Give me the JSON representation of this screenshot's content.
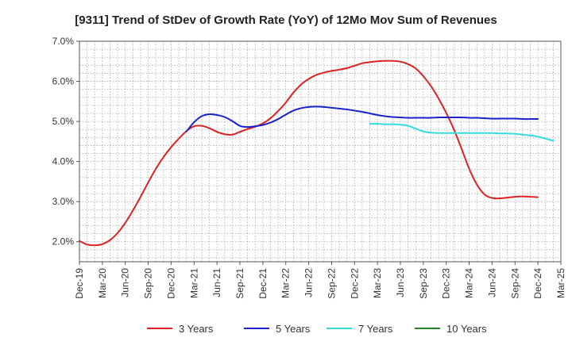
{
  "chart_data": {
    "type": "line",
    "title": "[9311]  Trend of StDev of Growth Rate (YoY) of 12Mo Mov Sum of Revenues",
    "xlabel": "",
    "ylabel": "",
    "ylim": [
      1.5,
      7.0
    ],
    "y_ticks": [
      2.0,
      3.0,
      4.0,
      5.0,
      6.0,
      7.0
    ],
    "y_tick_labels": [
      "2.0%",
      "3.0%",
      "4.0%",
      "5.0%",
      "6.0%",
      "7.0%"
    ],
    "x_range_months": [
      0,
      63
    ],
    "x_tick_labels": [
      "Dec-19",
      "Mar-20",
      "Jun-20",
      "Sep-20",
      "Dec-20",
      "Mar-21",
      "Jun-21",
      "Sep-21",
      "Dec-21",
      "Mar-22",
      "Jun-22",
      "Sep-22",
      "Dec-22",
      "Mar-23",
      "Jun-23",
      "Sep-23",
      "Dec-23",
      "Mar-24",
      "Jun-24",
      "Sep-24",
      "Dec-24",
      "Mar-25"
    ],
    "x_tick_months": [
      0,
      3,
      6,
      9,
      12,
      15,
      18,
      21,
      24,
      27,
      30,
      33,
      36,
      39,
      42,
      45,
      48,
      51,
      54,
      57,
      60,
      63
    ],
    "grid": true,
    "legend_position": "bottom",
    "series": [
      {
        "name": "3 Years",
        "color": "#dd2222",
        "start_month": 0,
        "values": [
          2.02,
          1.93,
          1.91,
          1.94,
          2.04,
          2.22,
          2.47,
          2.78,
          3.12,
          3.48,
          3.82,
          4.11,
          4.36,
          4.57,
          4.76,
          4.88,
          4.89,
          4.83,
          4.74,
          4.68,
          4.67,
          4.74,
          4.81,
          4.87,
          4.95,
          5.08,
          5.26,
          5.47,
          5.72,
          5.92,
          6.06,
          6.16,
          6.22,
          6.26,
          6.29,
          6.33,
          6.39,
          6.45,
          6.48,
          6.5,
          6.51,
          6.51,
          6.49,
          6.43,
          6.32,
          6.13,
          5.88,
          5.57,
          5.21,
          4.8,
          4.32,
          3.82,
          3.43,
          3.18,
          3.09,
          3.08,
          3.1,
          3.12,
          3.13,
          3.12,
          3.11
        ]
      },
      {
        "name": "5 Years",
        "color": "#1a22cc",
        "start_month": 14,
        "values": [
          4.75,
          4.98,
          5.13,
          5.18,
          5.16,
          5.11,
          5.01,
          4.89,
          4.86,
          4.88,
          4.91,
          4.97,
          5.06,
          5.17,
          5.27,
          5.33,
          5.36,
          5.37,
          5.36,
          5.34,
          5.32,
          5.3,
          5.27,
          5.24,
          5.2,
          5.16,
          5.13,
          5.11,
          5.1,
          5.09,
          5.09,
          5.09,
          5.09,
          5.1,
          5.1,
          5.1,
          5.1,
          5.09,
          5.09,
          5.08,
          5.07,
          5.07,
          5.07,
          5.07,
          5.06,
          5.06,
          5.06
        ]
      },
      {
        "name": "7 Years",
        "color": "#33dddd",
        "start_month": 38,
        "values": [
          4.94,
          4.94,
          4.93,
          4.93,
          4.92,
          4.89,
          4.82,
          4.75,
          4.72,
          4.71,
          4.71,
          4.71,
          4.71,
          4.71,
          4.71,
          4.71,
          4.71,
          4.7,
          4.7,
          4.69,
          4.67,
          4.65,
          4.62,
          4.57,
          4.52
        ]
      },
      {
        "name": "10 Years",
        "color": "#228822",
        "start_month": 0,
        "values": []
      }
    ]
  }
}
